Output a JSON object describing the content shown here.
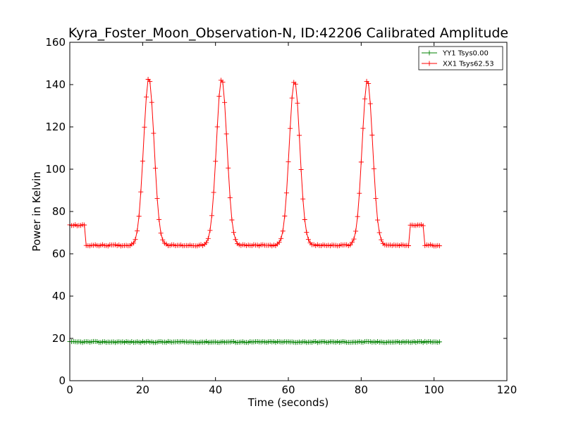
{
  "chart_data": {
    "type": "line",
    "title": "Kyra_Foster_Moon_Observation-N, ID:42206 Calibrated Amplitude",
    "xlabel": "Time (seconds)",
    "ylabel": "Power in Kelvin",
    "xlim": [
      0,
      120
    ],
    "ylim": [
      0,
      160
    ],
    "xticks": [
      "0",
      "20",
      "40",
      "60",
      "80",
      "100",
      "120"
    ],
    "yticks": [
      "0",
      "20",
      "40",
      "60",
      "80",
      "100",
      "120",
      "140",
      "160"
    ],
    "grid": false,
    "legend_position": "top-right",
    "series": [
      {
        "name": "YY1 Tsys0.00",
        "color": "#008000",
        "marker": "+",
        "baseline": 18.3,
        "x_range": [
          0,
          101.5
        ]
      },
      {
        "name": "XX1 Tsys62.53",
        "color": "#ff0000",
        "marker": "+",
        "baseline": 64,
        "calibration_level": 73.5,
        "calibration_segments": [
          [
            0,
            4
          ],
          [
            93.5,
            97
          ]
        ],
        "peaks": [
          {
            "x": 21.7,
            "y": 143
          },
          {
            "x": 41.7,
            "y": 143
          },
          {
            "x": 61.7,
            "y": 142
          },
          {
            "x": 81.7,
            "y": 142
          }
        ],
        "x_range": [
          0,
          101.5
        ]
      }
    ]
  }
}
